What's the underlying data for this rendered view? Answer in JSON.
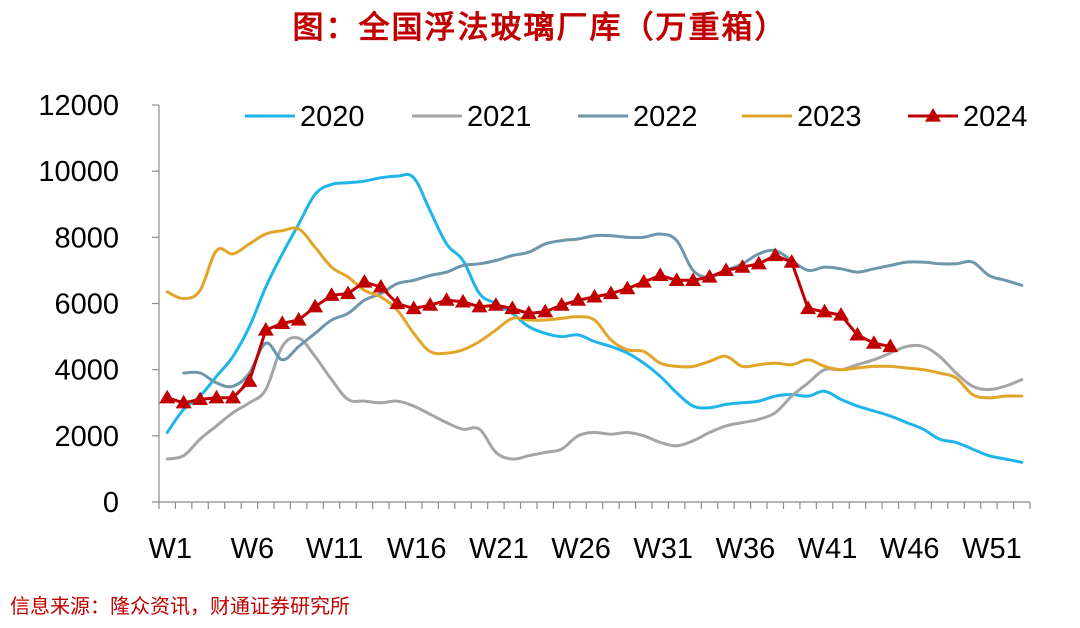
{
  "title": "图：全国浮法玻璃厂库（万重箱）",
  "source": "信息来源：隆众资讯，财通证券研究所",
  "chart_data": {
    "type": "line",
    "ylim": [
      0,
      12000
    ],
    "yticks": [
      0,
      2000,
      4000,
      6000,
      8000,
      10000,
      12000
    ],
    "xticks": [
      "W1",
      "W6",
      "W11",
      "W16",
      "W21",
      "W26",
      "W31",
      "W36",
      "W41",
      "W46",
      "W51"
    ],
    "legend_position": "top",
    "series": [
      {
        "name": "2020",
        "color": "#1fb5e8",
        "marker": "none",
        "x": [
          1,
          2,
          3,
          4,
          5,
          6,
          7,
          8,
          9,
          10,
          11,
          12,
          13,
          14,
          15,
          16,
          17,
          18,
          19,
          20,
          21,
          22,
          23,
          24,
          25,
          26,
          27,
          28,
          29,
          30,
          31,
          32,
          33,
          34,
          35,
          36,
          37,
          38,
          39,
          40,
          41,
          42,
          43,
          44,
          45,
          46,
          47,
          48,
          49,
          50,
          51,
          52,
          53
        ],
        "values": [
          2100,
          2800,
          3200,
          3800,
          4400,
          5300,
          6500,
          7500,
          8400,
          9300,
          9600,
          9650,
          9700,
          9800,
          9850,
          9800,
          8800,
          7800,
          7300,
          6300,
          6000,
          5700,
          5300,
          5100,
          5000,
          5050,
          4850,
          4700,
          4500,
          4200,
          3800,
          3300,
          2900,
          2850,
          2950,
          3000,
          3050,
          3200,
          3250,
          3200,
          3350,
          3100,
          2900,
          2750,
          2600,
          2400,
          2200,
          1900,
          1800,
          1600,
          1400,
          1300,
          1200
        ]
      },
      {
        "name": "2021",
        "color": "#a5a5a5",
        "marker": "none",
        "x": [
          1,
          2,
          3,
          4,
          5,
          6,
          7,
          8,
          9,
          10,
          11,
          12,
          13,
          14,
          15,
          16,
          17,
          18,
          19,
          20,
          21,
          22,
          23,
          24,
          25,
          26,
          27,
          28,
          29,
          30,
          31,
          32,
          33,
          34,
          35,
          36,
          37,
          38,
          39,
          40,
          41,
          42,
          43,
          44,
          45,
          46,
          47,
          48,
          49,
          50,
          51,
          52,
          53
        ],
        "values": [
          1300,
          1400,
          1900,
          2300,
          2700,
          3000,
          3400,
          4700,
          4950,
          4400,
          3700,
          3100,
          3050,
          3000,
          3050,
          2900,
          2650,
          2400,
          2200,
          2200,
          1500,
          1300,
          1400,
          1500,
          1600,
          2000,
          2100,
          2050,
          2100,
          2000,
          1800,
          1700,
          1850,
          2100,
          2300,
          2400,
          2500,
          2700,
          3200,
          3600,
          4000,
          4000,
          4150,
          4300,
          4500,
          4700,
          4700,
          4400,
          3900,
          3500,
          3400,
          3500,
          3700
        ]
      },
      {
        "name": "2022",
        "color": "#6e96ac",
        "marker": "none",
        "x": [
          1,
          2,
          3,
          4,
          5,
          6,
          7,
          8,
          9,
          10,
          11,
          12,
          13,
          14,
          15,
          16,
          17,
          18,
          19,
          20,
          21,
          22,
          23,
          24,
          25,
          26,
          27,
          28,
          29,
          30,
          31,
          32,
          33,
          34,
          35,
          36,
          37,
          38,
          39,
          40,
          41,
          42,
          43,
          44,
          45,
          46,
          47,
          48,
          49,
          50,
          51,
          52,
          53
        ],
        "values": [
          null,
          3900,
          3900,
          3600,
          3500,
          3900,
          4800,
          4300,
          4700,
          5100,
          5500,
          5700,
          6100,
          6300,
          6600,
          6700,
          6850,
          6950,
          7150,
          7200,
          7300,
          7450,
          7550,
          7800,
          7900,
          7950,
          8050,
          8050,
          8000,
          8000,
          8100,
          7900,
          7000,
          6800,
          7000,
          7200,
          7500,
          7600,
          7300,
          7000,
          7100,
          7050,
          6950,
          7050,
          7150,
          7250,
          7250,
          7200,
          7200,
          7250,
          6850,
          6700,
          6550
        ]
      },
      {
        "name": "2023",
        "color": "#e1a52a",
        "marker": "none",
        "x": [
          1,
          2,
          3,
          4,
          5,
          6,
          7,
          8,
          9,
          10,
          11,
          12,
          13,
          14,
          15,
          16,
          17,
          18,
          19,
          20,
          21,
          22,
          23,
          24,
          25,
          26,
          27,
          28,
          29,
          30,
          31,
          32,
          33,
          34,
          35,
          36,
          37,
          38,
          39,
          40,
          41,
          42,
          43,
          44,
          45,
          46,
          47,
          48,
          49,
          50,
          51,
          52,
          53
        ],
        "values": [
          6350,
          6150,
          6400,
          7600,
          7500,
          7800,
          8100,
          8200,
          8250,
          7700,
          7100,
          6800,
          6400,
          6200,
          5800,
          5100,
          4550,
          4500,
          4600,
          4850,
          5200,
          5550,
          5500,
          5500,
          5550,
          5600,
          5500,
          4900,
          4600,
          4550,
          4200,
          4100,
          4100,
          4250,
          4400,
          4100,
          4150,
          4200,
          4150,
          4300,
          4100,
          4000,
          4050,
          4100,
          4100,
          4050,
          4000,
          3900,
          3750,
          3250,
          3150,
          3200,
          3200
        ]
      },
      {
        "name": "2024",
        "color": "#c00000",
        "marker": "triangle",
        "x": [
          1,
          2,
          3,
          4,
          5,
          6,
          7,
          8,
          9,
          10,
          11,
          12,
          13,
          14,
          15,
          16,
          17,
          18,
          19,
          20,
          21,
          22,
          23,
          24,
          25,
          26,
          27,
          28,
          29,
          30,
          31,
          32,
          33,
          34,
          35,
          36,
          37,
          38,
          39,
          40,
          41,
          42,
          43,
          44,
          45,
          46
        ],
        "values": [
          3150,
          3000,
          3100,
          3150,
          3150,
          3650,
          5200,
          5400,
          5500,
          5900,
          6250,
          6300,
          6650,
          6500,
          6000,
          5850,
          5950,
          6100,
          6050,
          5900,
          5950,
          5850,
          5700,
          5750,
          5950,
          6100,
          6200,
          6300,
          6450,
          6650,
          6850,
          6700,
          6700,
          6800,
          7000,
          7100,
          7200,
          7450,
          7250,
          5850,
          5750,
          5650,
          5050,
          4800,
          4700,
          null
        ]
      }
    ]
  }
}
